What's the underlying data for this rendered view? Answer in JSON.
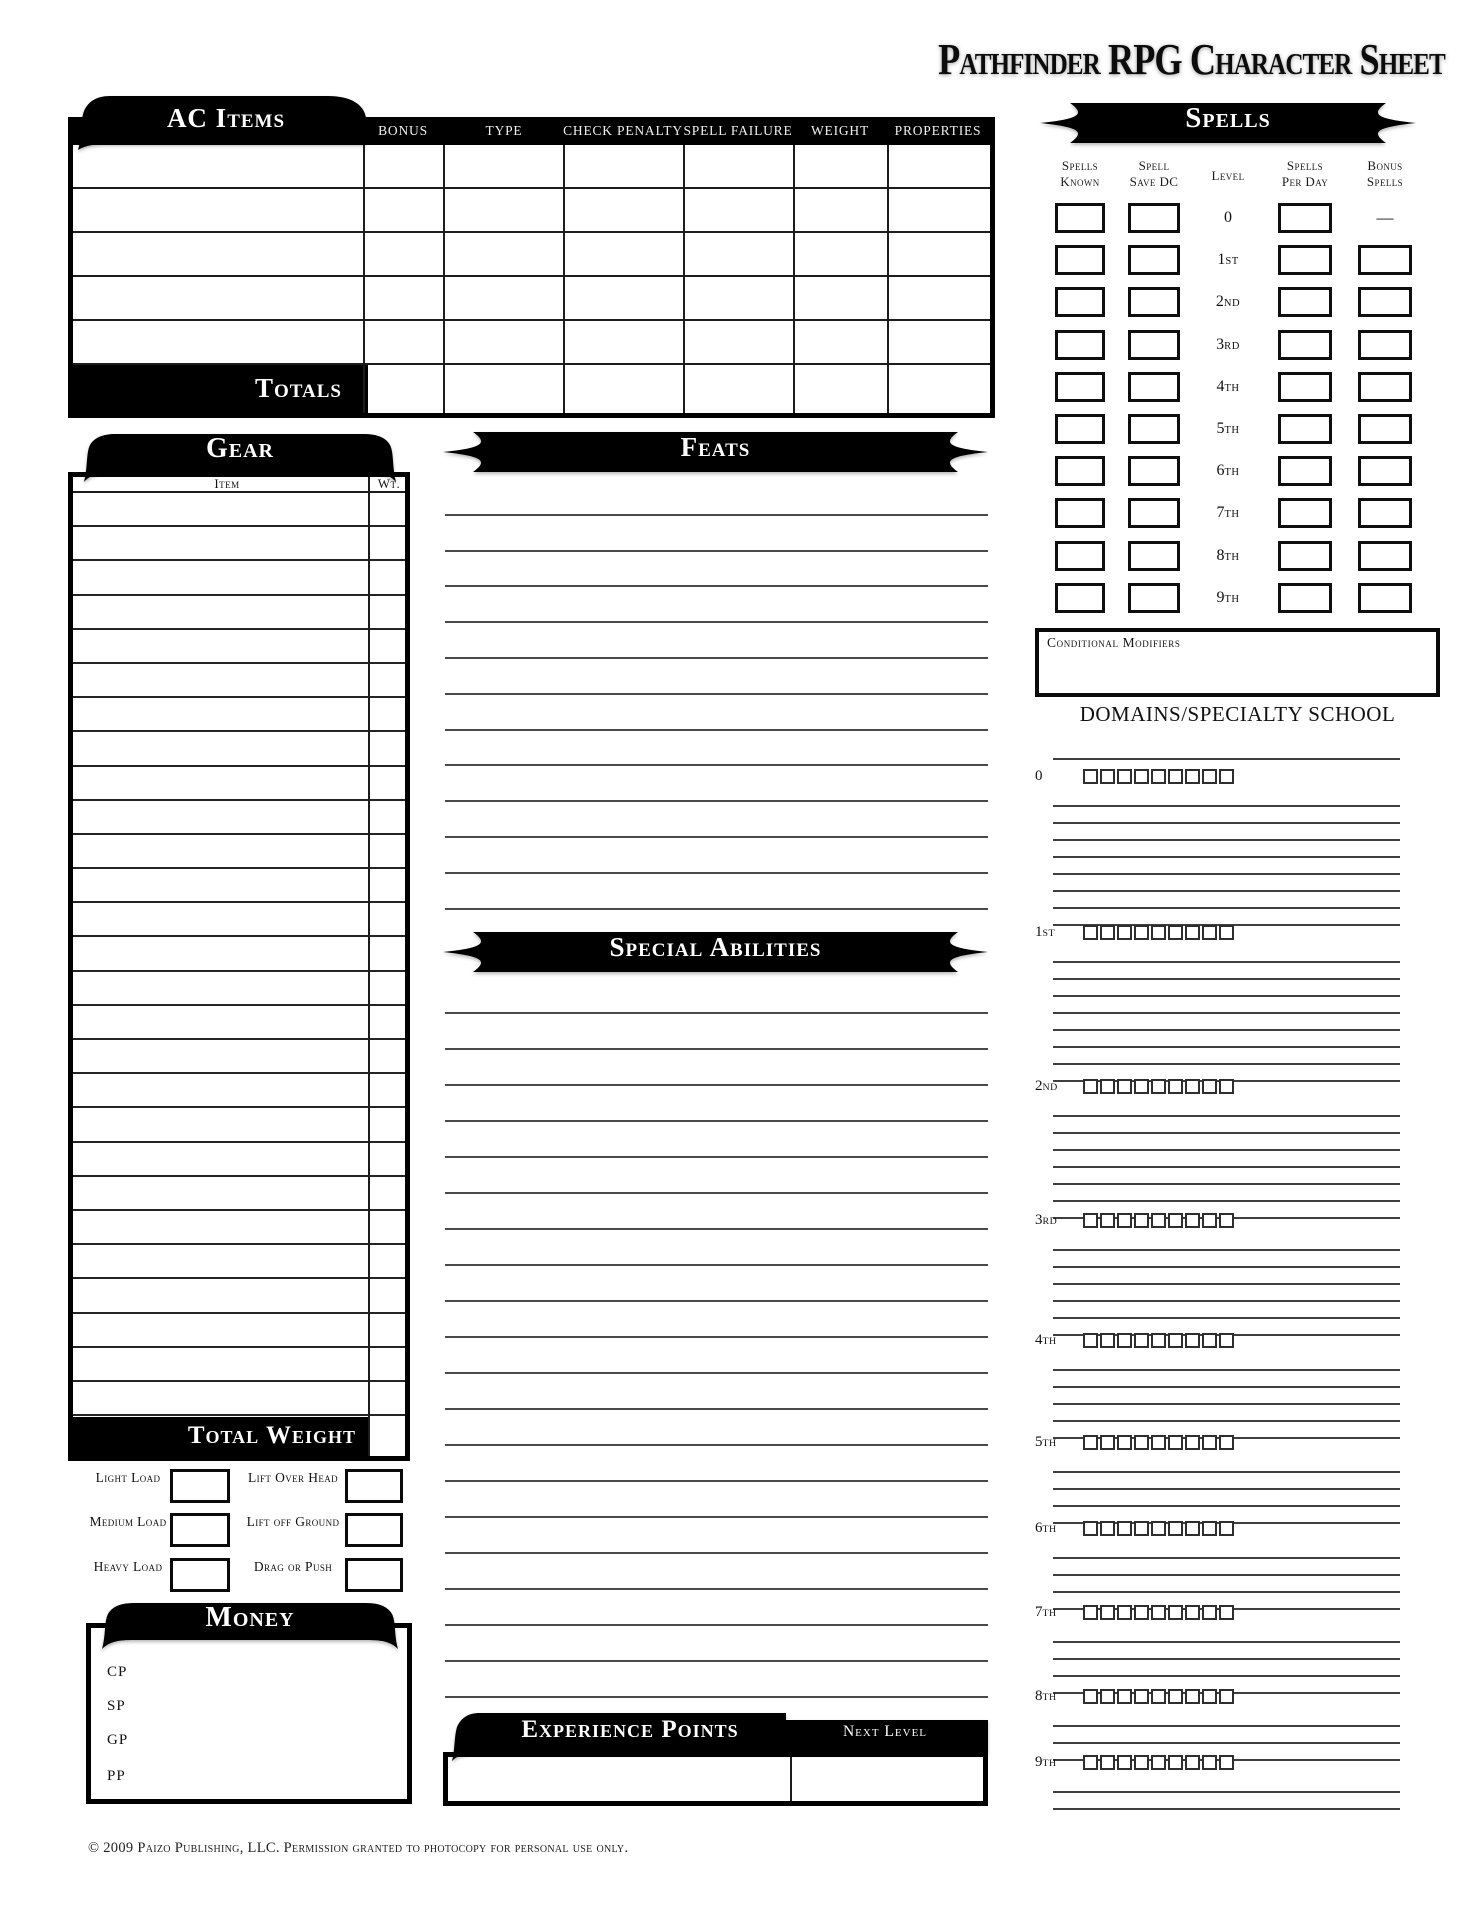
{
  "title": "Pathfinder RPG Character Sheet",
  "ac_items": {
    "banner": "AC Items",
    "columns": [
      "BONUS",
      "TYPE",
      "CHECK PENALTY",
      "SPELL FAILURE",
      "WEIGHT",
      "PROPERTIES"
    ],
    "row_count": 5,
    "totals_label": "Totals"
  },
  "gear": {
    "banner": "Gear",
    "item_header": "Item",
    "weight_header": "Wt.",
    "row_count": 27,
    "total_weight_label": "Total Weight"
  },
  "carry": {
    "rows": [
      {
        "left": "Light Load",
        "right": "Lift Over Head"
      },
      {
        "left": "Medium Load",
        "right": "Lift off Ground"
      },
      {
        "left": "Heavy Load",
        "right": "Drag or Push"
      }
    ]
  },
  "money": {
    "banner": "Money",
    "currencies": [
      "CP",
      "SP",
      "GP",
      "PP"
    ]
  },
  "feats": {
    "banner": "Feats",
    "line_count": 12
  },
  "special_abilities": {
    "banner": "Special Abilities",
    "line_count": 20
  },
  "experience": {
    "banner": "Experience Points",
    "next_level_label": "Next Level"
  },
  "spells": {
    "banner": "Spells",
    "headers": {
      "known": "Spells Known",
      "save_dc": "Spell Save DC",
      "level": "Level",
      "per_day": "Spells Per Day",
      "bonus": "Bonus Spells"
    },
    "level_labels": [
      "0",
      "1st",
      "2nd",
      "3rd",
      "4th",
      "5th",
      "6th",
      "7th",
      "8th",
      "9th"
    ],
    "level0_bonus": "—",
    "conditional_label": "Conditional Modifiers"
  },
  "domains": {
    "title": "DOMAINS/SPECIALTY SCHOOL",
    "checkbox_count": 9,
    "levels": [
      {
        "label": "0",
        "line_count": 8
      },
      {
        "label": "1st",
        "line_count": 8
      },
      {
        "label": "2nd",
        "line_count": 7
      },
      {
        "label": "3rd",
        "line_count": 6
      },
      {
        "label": "4th",
        "line_count": 5
      },
      {
        "label": "5th",
        "line_count": 4
      },
      {
        "label": "6th",
        "line_count": 4
      },
      {
        "label": "7th",
        "line_count": 4
      },
      {
        "label": "8th",
        "line_count": 3
      },
      {
        "label": "9th",
        "line_count": 2
      }
    ]
  },
  "footer": {
    "copyright": "© 2009 Paizo Publishing, LLC. Permission granted to photocopy for personal use only."
  }
}
